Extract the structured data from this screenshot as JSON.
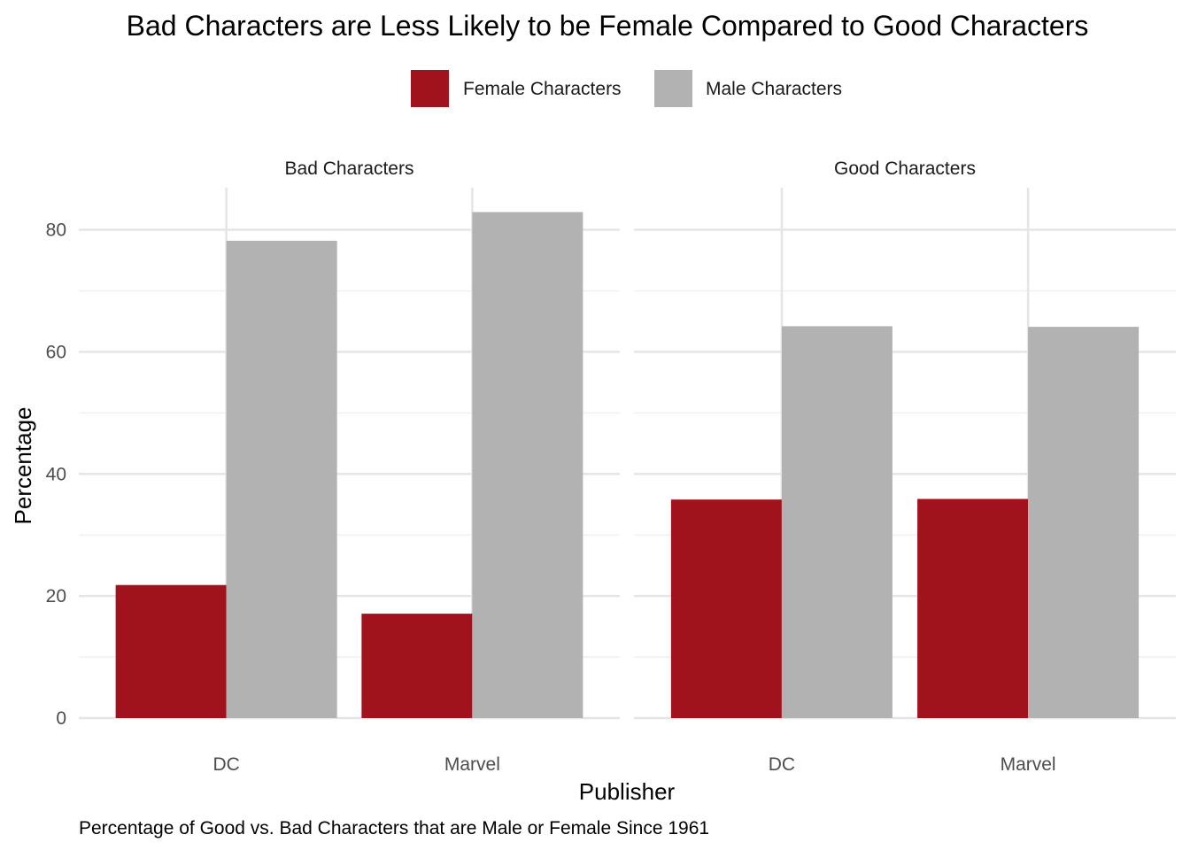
{
  "chart_data": {
    "type": "bar",
    "title": "Bad Characters are Less Likely to be Female Compared to Good Characters",
    "caption": "Percentage of Good vs. Bad Characters that are Male or Female Since 1961",
    "xlabel": "Publisher",
    "ylabel": "Percentage",
    "ylim": [
      0,
      87
    ],
    "y_ticks": [
      0,
      20,
      40,
      60,
      80
    ],
    "grid": true,
    "legend_position": "top",
    "legend": [
      {
        "name": "Female Characters",
        "color": "#a0121c"
      },
      {
        "name": "Male Characters",
        "color": "#b2b2b2"
      }
    ],
    "facets": [
      {
        "label": "Bad Characters",
        "categories": [
          "DC",
          "Marvel"
        ],
        "series": [
          {
            "name": "Female Characters",
            "values": [
              21.8,
              17.1
            ]
          },
          {
            "name": "Male Characters",
            "values": [
              78.2,
              82.9
            ]
          }
        ]
      },
      {
        "label": "Good Characters",
        "categories": [
          "DC",
          "Marvel"
        ],
        "series": [
          {
            "name": "Female Characters",
            "values": [
              35.8,
              35.9
            ]
          },
          {
            "name": "Male Characters",
            "values": [
              64.2,
              64.1
            ]
          }
        ]
      }
    ]
  }
}
